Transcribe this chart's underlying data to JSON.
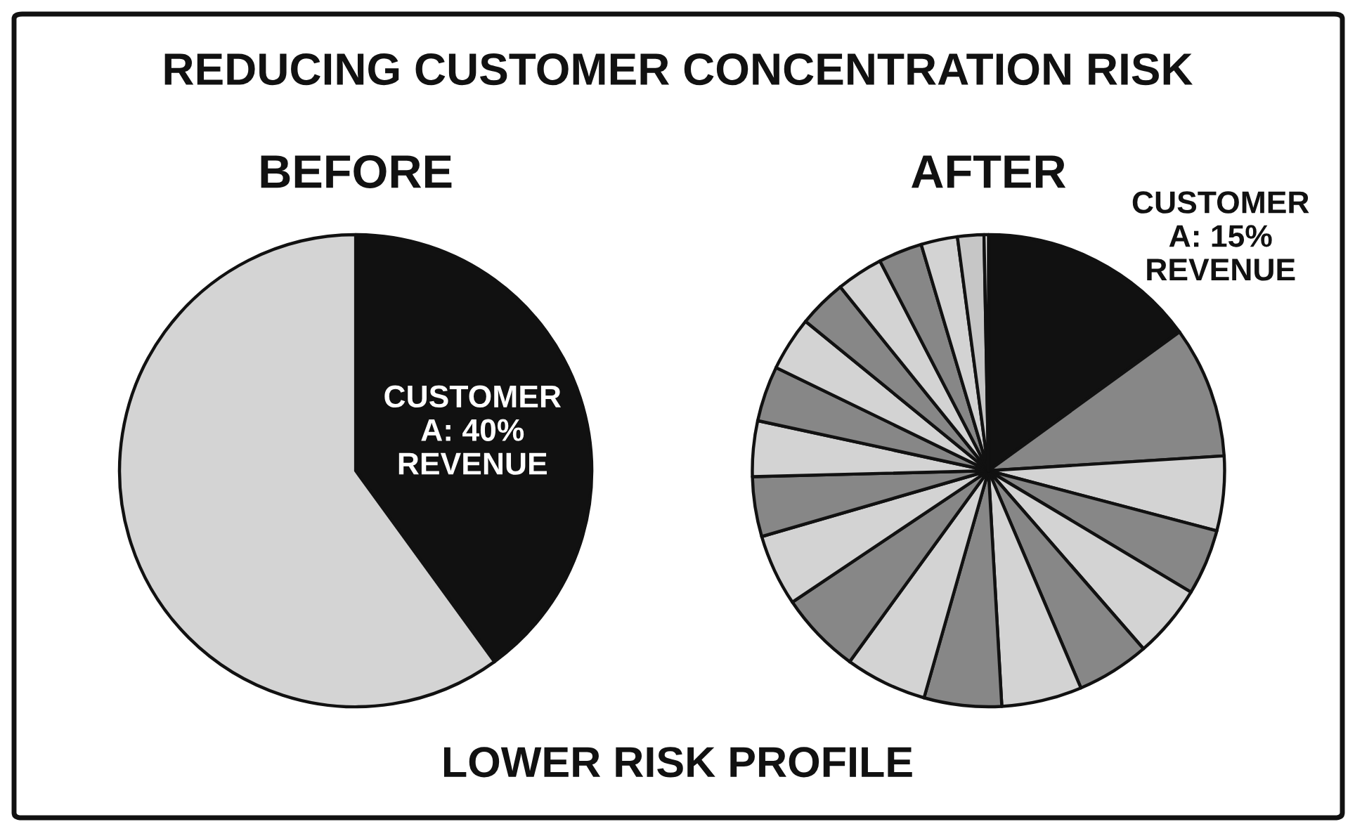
{
  "chart_data": [
    {
      "type": "pie",
      "title": "REDUCING CUSTOMER CONCENTRATION RISK",
      "subtitle": "BEFORE",
      "categories": [
        "CUSTOMER\nA: 40%\nREVENUE",
        null
      ],
      "values": [
        40,
        60
      ],
      "colors": [
        "#111111",
        "#d4d4d4"
      ]
    },
    {
      "type": "pie",
      "subtitle": "AFTER",
      "annotations": [
        "LOWER RISK PROFILE"
      ],
      "categories": [
        "CUSTOMER\nA: 15%\nREVENUE",
        null,
        null,
        null,
        null,
        null,
        null,
        null,
        null,
        null,
        null,
        null,
        null,
        null,
        null,
        null,
        null,
        null,
        null,
        null,
        null
      ],
      "values": [
        15,
        9.0,
        5.1,
        4.5,
        5.0,
        5.0,
        5.5,
        5.3,
        5.6,
        5.6,
        4.9,
        4.1,
        3.8,
        3.8,
        3.7,
        3.3,
        3.2,
        3.0,
        2.5,
        1.8,
        0.3
      ],
      "colors": [
        "#111111",
        "#878787",
        "#d3d3d3",
        "#878787",
        "#d3d3d3",
        "#878787",
        "#d3d3d3",
        "#878787",
        "#d3d3d3",
        "#878787",
        "#d3d3d3",
        "#878787",
        "#d3d3d3",
        "#878787",
        "#d3d3d3",
        "#878787",
        "#d3d3d3",
        "#878787",
        "#d3d3d3",
        "#c6c6c6",
        "#f2f2f2"
      ]
    }
  ]
}
